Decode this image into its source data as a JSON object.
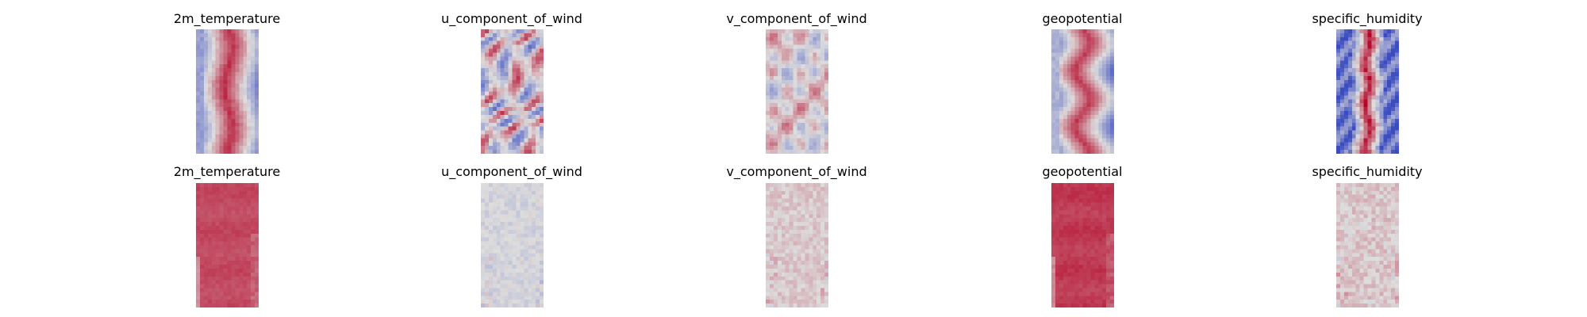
{
  "chart_data": {
    "type": "heatmap",
    "colormap": "coolwarm",
    "axes": "off",
    "colors": {
      "low": "#3b4cc0",
      "mid": "#dddddd",
      "high": "#b40426"
    },
    "rows": [
      {
        "panels": [
          {
            "title": "2m_temperature",
            "pattern": "band",
            "amplitude": 0.85,
            "base": 0.0
          },
          {
            "title": "u_component_of_wind",
            "pattern": "streaks",
            "amplitude": 0.75,
            "base": 0.0
          },
          {
            "title": "v_component_of_wind",
            "pattern": "eddies",
            "amplitude": 0.55,
            "base": 0.05
          },
          {
            "title": "geopotential",
            "pattern": "wave",
            "amplitude": 0.85,
            "base": 0.0
          },
          {
            "title": "specific_humidity",
            "pattern": "humid",
            "amplitude": 0.95,
            "base": 0.0
          }
        ]
      },
      {
        "panels": [
          {
            "title": "2m_temperature",
            "pattern": "flat",
            "amplitude": 0.35,
            "base": 0.5
          },
          {
            "title": "u_component_of_wind",
            "pattern": "noise",
            "amplitude": 0.3,
            "base": -0.05
          },
          {
            "title": "v_component_of_wind",
            "pattern": "noise",
            "amplitude": 0.3,
            "base": 0.1
          },
          {
            "title": "geopotential",
            "pattern": "flat",
            "amplitude": 0.4,
            "base": 0.55
          },
          {
            "title": "specific_humidity",
            "pattern": "noise",
            "amplitude": 0.4,
            "base": 0.1
          }
        ]
      }
    ]
  }
}
